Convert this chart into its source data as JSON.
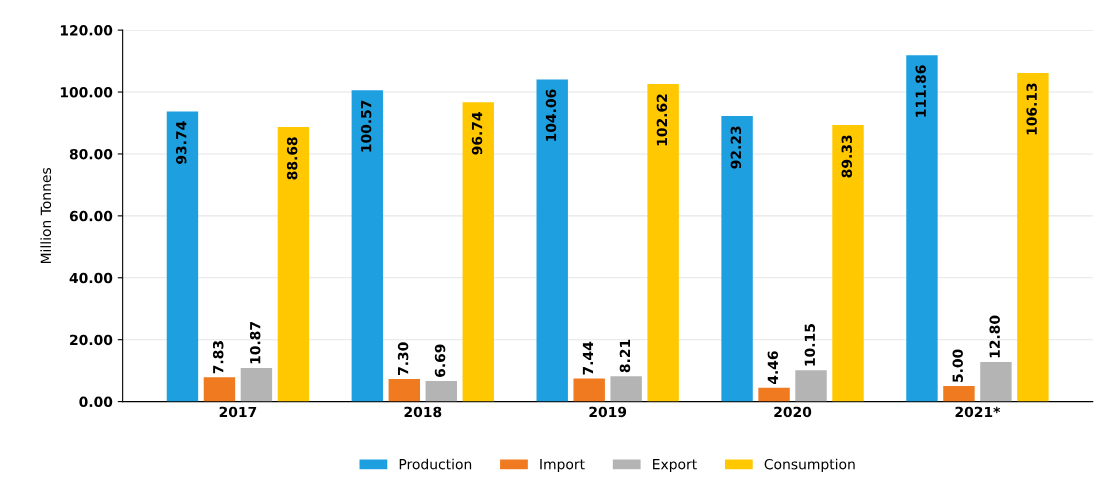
{
  "chart_data": {
    "type": "bar",
    "ylabel": "Million Tonnes",
    "categories": [
      "2017",
      "2018",
      "2019",
      "2020",
      "2021*"
    ],
    "series": [
      {
        "name": "Production",
        "color": "#1ea0e0",
        "values": [
          93.74,
          100.57,
          104.06,
          92.23,
          111.86
        ],
        "value_labels": [
          "93.74",
          "100.57",
          "104.06",
          "92.23",
          "111.86"
        ]
      },
      {
        "name": "Import",
        "color": "#f07a20",
        "values": [
          7.83,
          7.3,
          7.44,
          4.46,
          5.0
        ],
        "value_labels": [
          "7.83",
          "7.30",
          "7.44",
          "4.46",
          "5.00"
        ]
      },
      {
        "name": "Export",
        "color": "#b4b4b4",
        "values": [
          10.87,
          6.69,
          8.21,
          10.15,
          12.8
        ],
        "value_labels": [
          "10.87",
          "6.69",
          "8.21",
          "10.15",
          "12.80"
        ]
      },
      {
        "name": "Consumption",
        "color": "#ffc800",
        "values": [
          88.68,
          96.74,
          102.62,
          89.33,
          106.13
        ],
        "value_labels": [
          "88.68",
          "96.74",
          "102.62",
          "89.33",
          "106.13"
        ]
      }
    ],
    "ylim": [
      0,
      120
    ],
    "yticks": [
      {
        "value": 0,
        "label": "0.00"
      },
      {
        "value": 20,
        "label": "20.00"
      },
      {
        "value": 40,
        "label": "40.00"
      },
      {
        "value": 60,
        "label": "60.00"
      },
      {
        "value": 80,
        "label": "80.00"
      },
      {
        "value": 100,
        "label": "100.00"
      },
      {
        "value": 120,
        "label": "120.00"
      }
    ],
    "grid": "y",
    "legend": "bottom"
  }
}
